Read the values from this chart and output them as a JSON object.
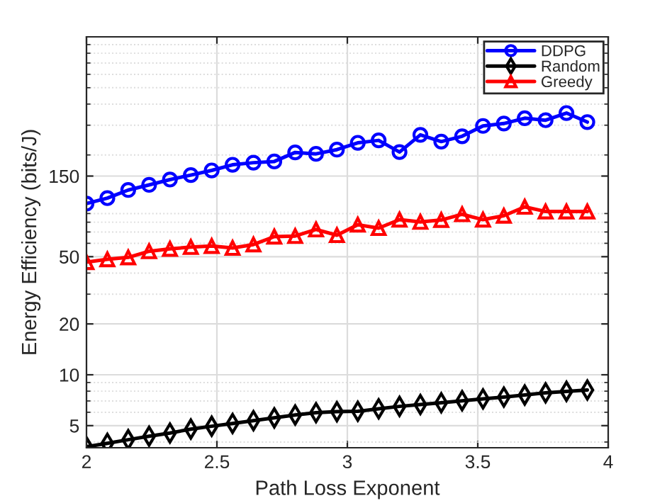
{
  "chart_data": {
    "type": "line",
    "xlabel": "Path Loss Exponent",
    "ylabel": "Energy Efficiency (bits/J)",
    "x": [
      2.0,
      2.08,
      2.16,
      2.24,
      2.32,
      2.4,
      2.48,
      2.56,
      2.64,
      2.72,
      2.8,
      2.88,
      2.96,
      3.04,
      3.12,
      3.2,
      3.28,
      3.36,
      3.44,
      3.52,
      3.6,
      3.68,
      3.76,
      3.84,
      3.92
    ],
    "series": [
      {
        "name": "DDPG",
        "color": "#0000ff",
        "marker": "circle",
        "values": [
          103,
          111,
          124,
          133,
          143,
          152,
          162,
          175,
          180,
          183,
          207,
          203,
          215,
          236,
          244,
          208,
          263,
          240,
          258,
          297,
          307,
          330,
          321,
          354,
          313
        ]
      },
      {
        "name": "Random",
        "color": "#000000",
        "marker": "diamond",
        "values": [
          3.75,
          3.93,
          4.13,
          4.33,
          4.52,
          4.77,
          4.96,
          5.15,
          5.35,
          5.56,
          5.78,
          5.97,
          6.05,
          6.08,
          6.29,
          6.5,
          6.67,
          6.83,
          7.02,
          7.2,
          7.38,
          7.59,
          7.82,
          7.98,
          8.13
        ]
      },
      {
        "name": "Greedy",
        "color": "#ff0000",
        "marker": "triangle",
        "values": [
          46.4,
          48.2,
          49.5,
          53.8,
          55.6,
          57.0,
          57.8,
          56.3,
          59.0,
          65.7,
          66.2,
          72.4,
          67.0,
          77.3,
          73.8,
          82.8,
          80.3,
          82.4,
          89.1,
          82.8,
          87.3,
          98.6,
          92.5,
          92.5,
          92.5
        ]
      }
    ],
    "log": "y",
    "xlim": [
      2,
      4
    ],
    "xticks": [
      2,
      2.5,
      3,
      3.5,
      4
    ],
    "ylim": [
      3.7,
      1000
    ],
    "yticks": [
      5,
      10,
      20,
      50,
      150
    ],
    "grid": true,
    "legend": "top right",
    "line_style": "solid"
  }
}
